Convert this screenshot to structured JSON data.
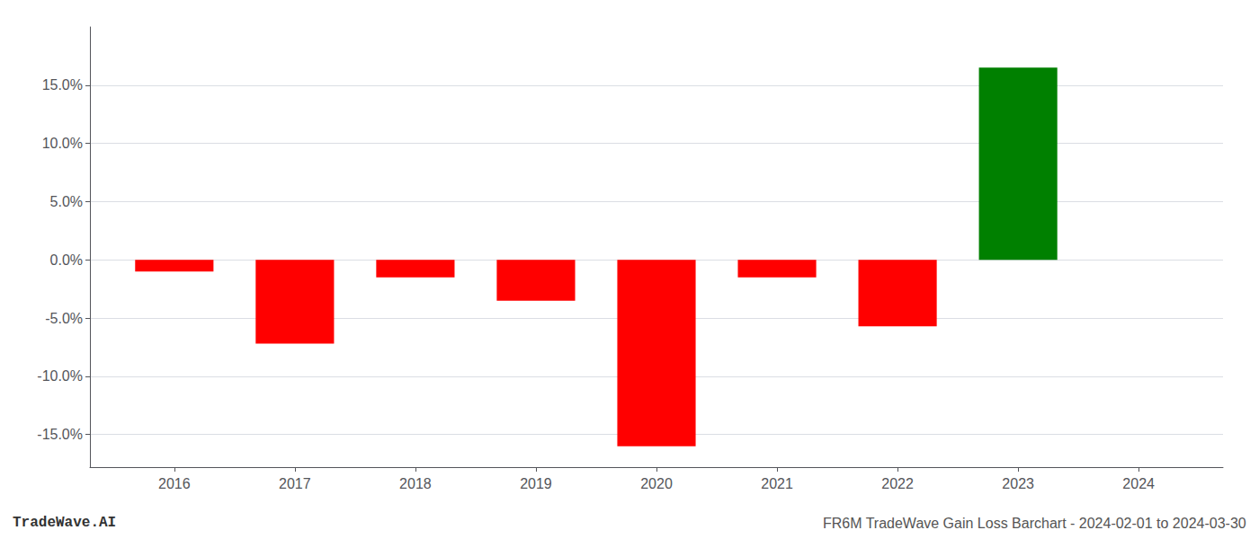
{
  "chart_data": {
    "type": "bar",
    "x": [
      2016,
      2017,
      2018,
      2019,
      2020,
      2021,
      2022,
      2023
    ],
    "values": [
      -0.01,
      -0.072,
      -0.015,
      -0.035,
      -0.16,
      -0.015,
      -0.057,
      0.165
    ],
    "colors": [
      "#ff0000",
      "#ff0000",
      "#ff0000",
      "#ff0000",
      "#ff0000",
      "#ff0000",
      "#ff0000",
      "#008000"
    ],
    "xlim": [
      2015.3,
      2024.7
    ],
    "xticks": [
      2016,
      2017,
      2018,
      2019,
      2020,
      2021,
      2022,
      2023,
      2024
    ],
    "ylim": [
      -0.178,
      0.2
    ],
    "yticks": [
      {
        "value": -0.15,
        "label": "-15.0%"
      },
      {
        "value": -0.1,
        "label": "-10.0%"
      },
      {
        "value": -0.05,
        "label": "-5.0%"
      },
      {
        "value": 0.0,
        "label": "0.0%"
      },
      {
        "value": 0.05,
        "label": "5.0%"
      },
      {
        "value": 0.1,
        "label": "10.0%"
      },
      {
        "value": 0.15,
        "label": "15.0%"
      }
    ],
    "grid": true,
    "annotations": [
      "TradeWave.AI",
      "FR6M TradeWave Gain Loss Barchart - 2024-02-01 to 2024-03-30"
    ]
  }
}
